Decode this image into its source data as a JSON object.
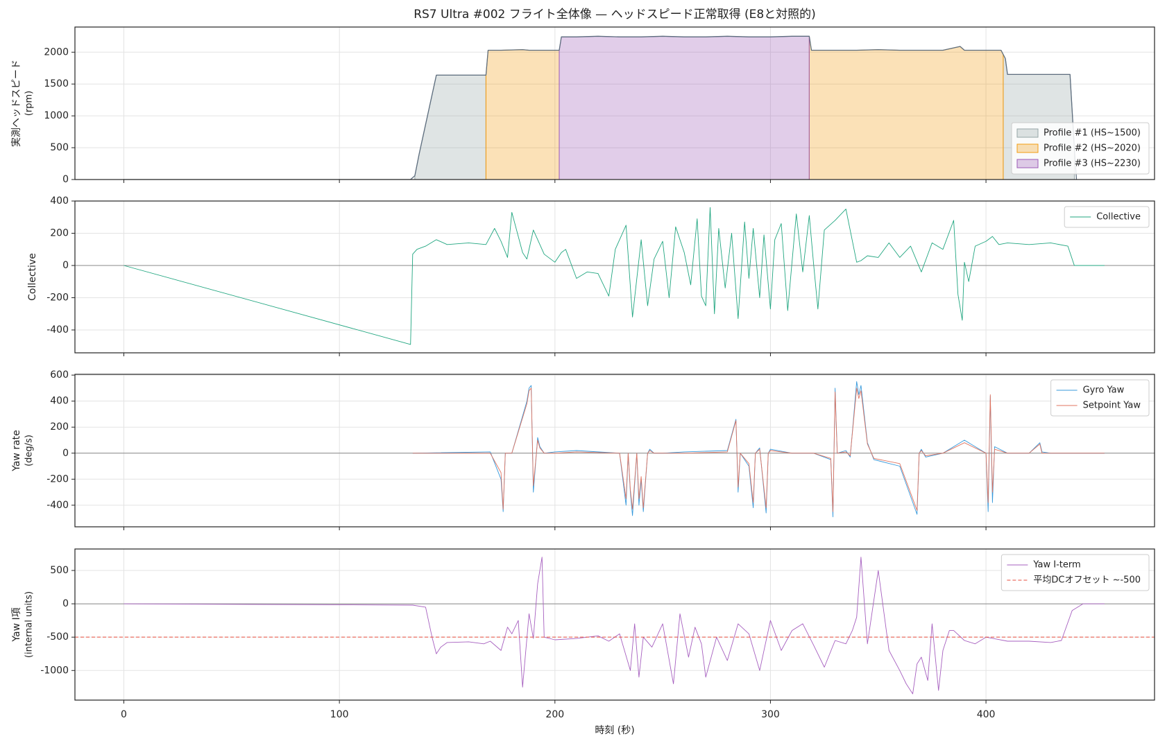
{
  "chart_data": [
    {
      "type": "line",
      "title": "RS7 Ultra #002 フライト全体像 — ヘッドスピード正常取得 (E8と対照的)",
      "ylabel": [
        "実測ヘッドスピード",
        "(rpm)"
      ],
      "grid": true,
      "legend": "lower right",
      "xtick_labels": false,
      "xlim": [
        -22.7,
        478.2
      ],
      "xticks": [
        0,
        100,
        200,
        300,
        400
      ],
      "ylim": [
        0,
        2395
      ],
      "yticks": [
        0,
        500,
        1000,
        1500,
        2000
      ],
      "series": [
        {
          "color": "#5d6d7e",
          "x": [
            0,
            133,
            135,
            137,
            145,
            146,
            168,
            169,
            175,
            185,
            188,
            195,
            202,
            203,
            210,
            220,
            230,
            240,
            250,
            260,
            270,
            280,
            290,
            300,
            310,
            318,
            319,
            330,
            340,
            350,
            360,
            370,
            380,
            388,
            390,
            400,
            407,
            409,
            410,
            420,
            430,
            439,
            441,
            442
          ],
          "values": [
            0,
            0,
            60,
            400,
            1640,
            1640,
            1640,
            2030,
            2030,
            2040,
            2030,
            2030,
            2030,
            2240,
            2240,
            2250,
            2240,
            2240,
            2250,
            2240,
            2240,
            2250,
            2240,
            2240,
            2250,
            2250,
            2030,
            2030,
            2030,
            2040,
            2030,
            2030,
            2030,
            2090,
            2030,
            2030,
            2030,
            1900,
            1650,
            1650,
            1650,
            1650,
            500,
            0
          ]
        }
      ],
      "profiles": [
        {
          "name": "Profile #1 (HS~1500)",
          "color": "#95a5a6",
          "spans": [
            [
              135,
              168
            ],
            [
              408,
              441
            ]
          ]
        },
        {
          "name": "Profile #2 (HS~2020)",
          "color": "#f39c12",
          "spans": [
            [
              168,
              202
            ],
            [
              318,
              408
            ]
          ]
        },
        {
          "name": "Profile #3 (HS~2230)",
          "color": "#9b59b6",
          "spans": [
            [
              202,
              318
            ]
          ]
        }
      ]
    },
    {
      "type": "line",
      "ylabel": [
        "Collective"
      ],
      "grid": true,
      "legend": "upper right",
      "xtick_labels": false,
      "xlim": [
        -22.7,
        478.2
      ],
      "xticks": [
        0,
        100,
        200,
        300,
        400
      ],
      "ylim": [
        -542,
        400
      ],
      "yticks": [
        -400,
        -200,
        0,
        200,
        400
      ],
      "hlines": [
        {
          "value": 0,
          "color": "#888888"
        }
      ],
      "series": [
        {
          "name": "Collective",
          "color": "#1fa57f",
          "x": [
            0,
            133,
            134,
            136,
            140,
            145,
            150,
            160,
            168,
            172,
            175,
            178,
            180,
            185,
            187,
            190,
            195,
            200,
            203,
            205,
            210,
            215,
            220,
            225,
            228,
            233,
            236,
            240,
            243,
            246,
            250,
            253,
            256,
            260,
            263,
            266,
            268,
            270,
            272,
            274,
            276,
            279,
            282,
            285,
            288,
            290,
            292,
            295,
            297,
            300,
            302,
            305,
            308,
            312,
            315,
            318,
            320,
            322,
            325,
            330,
            335,
            340,
            342,
            345,
            350,
            355,
            360,
            365,
            370,
            375,
            380,
            385,
            387,
            389,
            390,
            392,
            395,
            400,
            403,
            406,
            410,
            420,
            430,
            438,
            441,
            455
          ],
          "values": [
            0,
            -490,
            70,
            100,
            120,
            160,
            130,
            140,
            130,
            230,
            150,
            50,
            330,
            80,
            40,
            220,
            70,
            20,
            80,
            100,
            -80,
            -40,
            -50,
            -190,
            100,
            250,
            -320,
            160,
            -250,
            40,
            150,
            -200,
            240,
            80,
            -120,
            290,
            -190,
            -250,
            360,
            -300,
            230,
            -140,
            200,
            -330,
            270,
            -80,
            230,
            -200,
            190,
            -270,
            160,
            260,
            -280,
            320,
            -40,
            310,
            10,
            -270,
            220,
            280,
            350,
            20,
            30,
            60,
            50,
            140,
            50,
            120,
            -40,
            140,
            100,
            280,
            -180,
            -340,
            20,
            -100,
            120,
            150,
            180,
            130,
            140,
            130,
            140,
            120,
            0,
            0
          ]
        }
      ]
    },
    {
      "type": "line",
      "ylabel": [
        "Yaw rate",
        "(deg/s)"
      ],
      "grid": true,
      "legend": "upper right",
      "xtick_labels": false,
      "xlim": [
        -22.7,
        478.2
      ],
      "xticks": [
        0,
        100,
        200,
        300,
        400
      ],
      "ylim": [
        -566,
        606
      ],
      "yticks": [
        -400,
        -200,
        0,
        200,
        400,
        600
      ],
      "hlines": [
        {
          "value": 0,
          "color": "#888888"
        }
      ],
      "series": [
        {
          "name": "Gyro Yaw",
          "color": "#3498db",
          "x": [
            134,
            170,
            175,
            176,
            177,
            180,
            187,
            188,
            189,
            190,
            192,
            193,
            195,
            200,
            210,
            230,
            233,
            234,
            235,
            236,
            238,
            239,
            240,
            241,
            243,
            244,
            246,
            250,
            260,
            280,
            284,
            285,
            286,
            290,
            292,
            293,
            295,
            298,
            299,
            300,
            310,
            320,
            328,
            329,
            330,
            331,
            335,
            337,
            340,
            341,
            342,
            345,
            348,
            360,
            368,
            369,
            370,
            372,
            380,
            390,
            400,
            401,
            402,
            403,
            404,
            410,
            420,
            425,
            426,
            430,
            455
          ],
          "values": [
            0,
            10,
            -200,
            -450,
            0,
            0,
            400,
            500,
            520,
            -300,
            120,
            50,
            0,
            10,
            20,
            0,
            -400,
            0,
            -300,
            -480,
            0,
            -400,
            -200,
            -450,
            0,
            30,
            0,
            0,
            10,
            20,
            260,
            -300,
            0,
            -100,
            -420,
            0,
            40,
            -460,
            0,
            30,
            0,
            0,
            -50,
            -490,
            500,
            0,
            20,
            -30,
            550,
            450,
            520,
            80,
            -50,
            -100,
            -470,
            0,
            30,
            -30,
            0,
            100,
            0,
            -450,
            440,
            -380,
            50,
            0,
            0,
            80,
            10,
            0,
            0
          ]
        },
        {
          "name": "Setpoint Yaw",
          "color": "#e0735f",
          "x": [
            134,
            170,
            175,
            176,
            177,
            180,
            187,
            188,
            189,
            190,
            192,
            193,
            195,
            200,
            210,
            230,
            233,
            234,
            235,
            236,
            238,
            239,
            240,
            241,
            243,
            244,
            246,
            250,
            260,
            280,
            284,
            285,
            286,
            290,
            292,
            293,
            295,
            298,
            299,
            300,
            310,
            320,
            328,
            329,
            330,
            331,
            335,
            337,
            340,
            341,
            342,
            345,
            348,
            360,
            368,
            369,
            370,
            372,
            380,
            390,
            400,
            401,
            402,
            403,
            404,
            410,
            420,
            425,
            426,
            430,
            455
          ],
          "values": [
            0,
            0,
            -150,
            -430,
            0,
            0,
            380,
            480,
            500,
            -250,
            100,
            40,
            0,
            0,
            10,
            0,
            -350,
            0,
            -280,
            -430,
            0,
            -350,
            -180,
            -420,
            0,
            20,
            0,
            0,
            0,
            10,
            250,
            -260,
            0,
            -80,
            -380,
            0,
            30,
            -420,
            0,
            20,
            0,
            0,
            -40,
            -450,
            470,
            0,
            10,
            -20,
            500,
            420,
            480,
            70,
            -40,
            -80,
            -440,
            0,
            20,
            -20,
            0,
            80,
            0,
            -380,
            450,
            -300,
            30,
            0,
            0,
            70,
            0,
            0,
            0
          ]
        }
      ]
    },
    {
      "type": "line",
      "ylabel": [
        "Yaw I項",
        "(internal units)"
      ],
      "xlabel": "時刻 (秒)",
      "grid": true,
      "legend": "upper right",
      "xtick_labels": true,
      "xlim": [
        -22.7,
        478.2
      ],
      "xticks": [
        0,
        100,
        200,
        300,
        400
      ],
      "ylim": [
        -1444,
        822
      ],
      "yticks": [
        -1000,
        -500,
        0,
        500
      ],
      "hlines": [
        {
          "value": 0,
          "color": "#888888"
        },
        {
          "value": -500,
          "color": "#e74c3c",
          "dashed": true,
          "name": "平均DCオフセット ~-500"
        }
      ],
      "series": [
        {
          "name": "Yaw I-term",
          "color": "#a65fbf",
          "x": [
            0,
            134,
            140,
            143,
            145,
            147,
            150,
            160,
            167,
            170,
            175,
            178,
            180,
            183,
            185,
            188,
            190,
            192,
            194,
            195,
            200,
            210,
            220,
            225,
            230,
            235,
            237,
            239,
            241,
            245,
            250,
            255,
            258,
            262,
            265,
            268,
            270,
            275,
            280,
            285,
            290,
            295,
            300,
            305,
            310,
            315,
            320,
            325,
            330,
            335,
            338,
            340,
            342,
            345,
            350,
            355,
            360,
            363,
            366,
            368,
            370,
            373,
            375,
            378,
            380,
            383,
            385,
            390,
            395,
            400,
            405,
            410,
            420,
            430,
            435,
            440,
            445,
            455
          ],
          "values": [
            0,
            -20,
            -50,
            -500,
            -750,
            -650,
            -580,
            -570,
            -600,
            -560,
            -700,
            -350,
            -450,
            -250,
            -1250,
            -150,
            -520,
            300,
            700,
            -500,
            -540,
            -520,
            -480,
            -560,
            -450,
            -1000,
            -300,
            -1100,
            -500,
            -650,
            -300,
            -1200,
            -150,
            -800,
            -350,
            -600,
            -1100,
            -500,
            -850,
            -300,
            -450,
            -1000,
            -250,
            -700,
            -400,
            -300,
            -620,
            -950,
            -550,
            -600,
            -400,
            -200,
            700,
            -600,
            500,
            -700,
            -1000,
            -1200,
            -1350,
            -900,
            -800,
            -1150,
            -300,
            -1300,
            -700,
            -400,
            -400,
            -550,
            -600,
            -500,
            -530,
            -560,
            -560,
            -580,
            -550,
            -100,
            0,
            0
          ]
        }
      ]
    }
  ]
}
